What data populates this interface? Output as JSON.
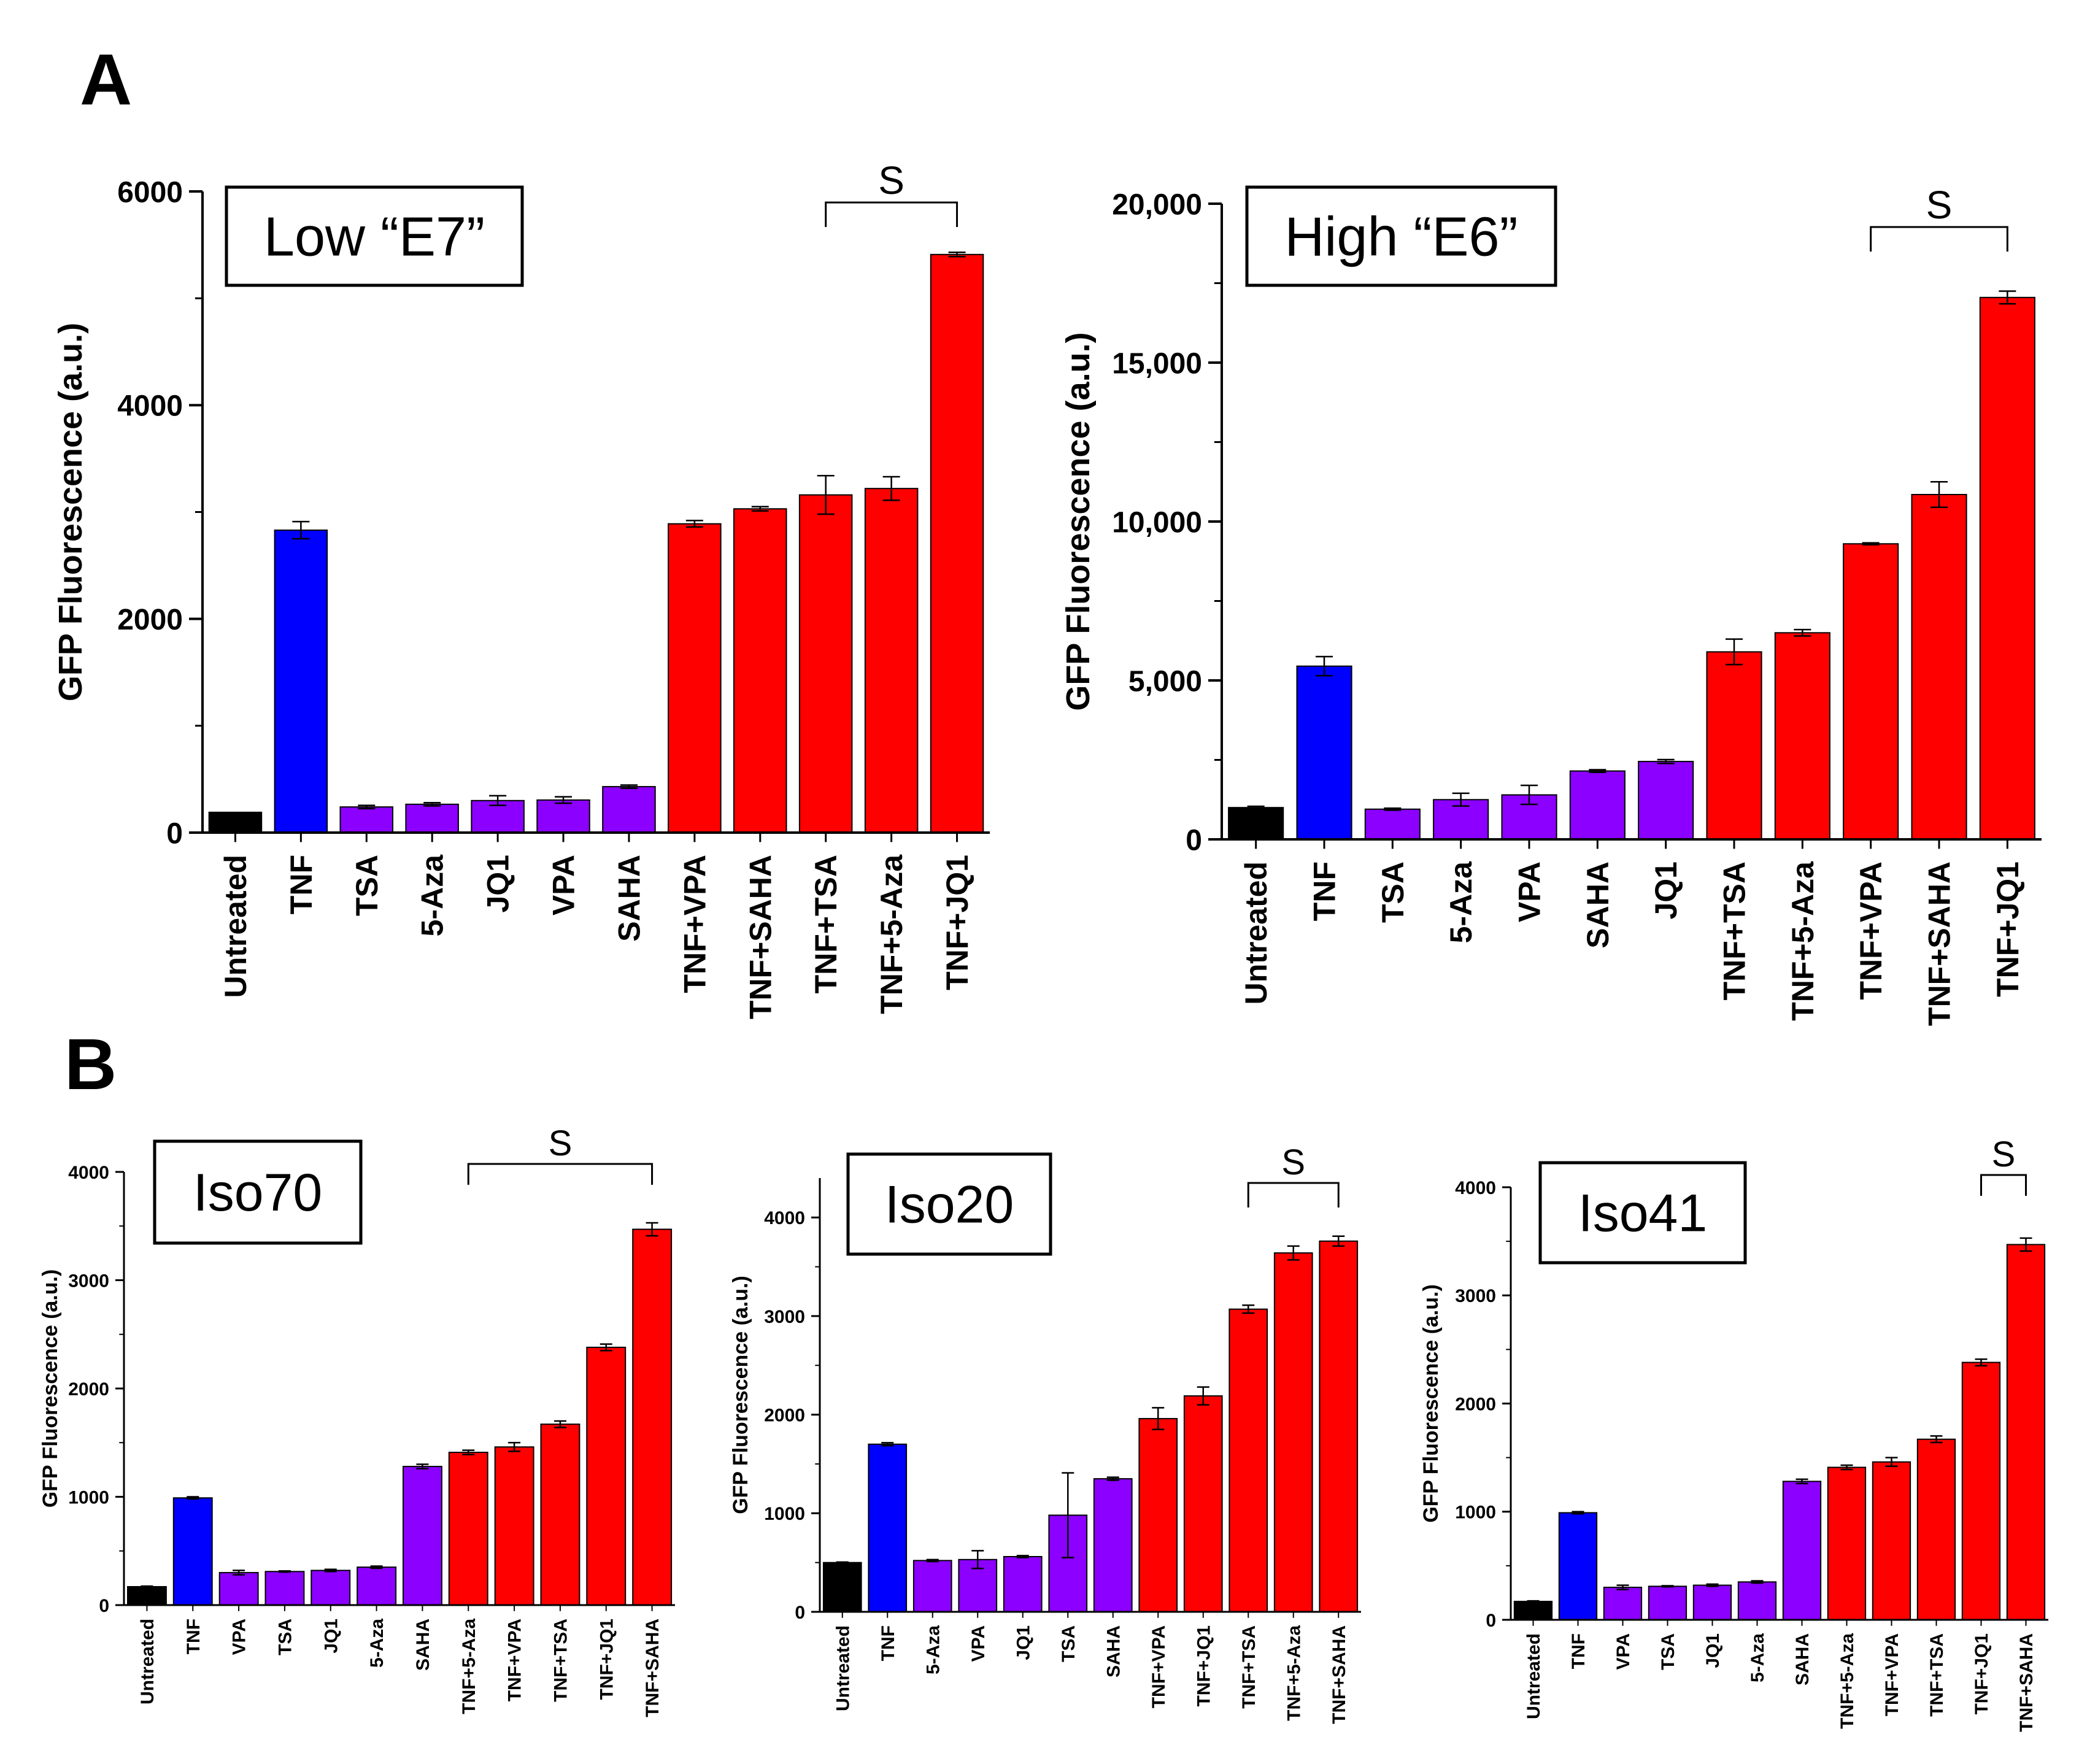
{
  "figure": {
    "panel_labels": [
      "A",
      "B"
    ],
    "colors": {
      "untreated": "#000000",
      "tnf": "#0000ff",
      "single_drug": "#8b00ff",
      "combination": "#ff0000",
      "axis": "#000000"
    }
  },
  "chart_data": [
    {
      "id": "low-e7",
      "type": "bar",
      "panel": "A",
      "title": "Low “E7”",
      "ylabel": "GFP Fluorescence (a.u.)",
      "xlabel": "",
      "ylim": [
        0,
        6000
      ],
      "yticks": [
        0,
        2000,
        4000,
        6000
      ],
      "ytick_labels": [
        "0",
        "2000",
        "4000",
        "6000"
      ],
      "categories": [
        "Untreated",
        "TNF",
        "TSA",
        "5-Aza",
        "JQ1",
        "VPA",
        "SAHA",
        "TNF+VPA",
        "TNF+SAHA",
        "TNF+TSA",
        "TNF+5-Aza",
        "TNF+JQ1"
      ],
      "values": [
        190,
        2830,
        240,
        265,
        300,
        305,
        430,
        2890,
        3030,
        3160,
        3220,
        5410
      ],
      "errors": [
        0,
        80,
        15,
        15,
        45,
        30,
        15,
        30,
        20,
        180,
        110,
        20
      ],
      "groups": [
        "untreated",
        "tnf",
        "single_drug",
        "single_drug",
        "single_drug",
        "single_drug",
        "single_drug",
        "combination",
        "combination",
        "combination",
        "combination",
        "combination"
      ],
      "significance": {
        "label": "S",
        "from": 9,
        "to": 11
      }
    },
    {
      "id": "high-e6",
      "type": "bar",
      "panel": "A",
      "title": "High “E6”",
      "ylabel": "GFP Fluorescence (a.u.)",
      "xlabel": "",
      "ylim": [
        0,
        20000
      ],
      "yticks": [
        0,
        5000,
        10000,
        15000,
        20000
      ],
      "ytick_labels": [
        "0",
        "5,000",
        "10,000",
        "15,000",
        "20,000"
      ],
      "categories": [
        "Untreated",
        "TNF",
        "TSA",
        "5-Aza",
        "VPA",
        "SAHA",
        "JQ1",
        "TNF+TSA",
        "TNF+5-Aza",
        "TNF+VPA",
        "TNF+SAHA",
        "TNF+JQ1"
      ],
      "values": [
        1000,
        5450,
        950,
        1250,
        1400,
        2150,
        2450,
        5900,
        6500,
        9300,
        10850,
        17050
      ],
      "errors": [
        40,
        300,
        30,
        200,
        300,
        40,
        60,
        400,
        100,
        30,
        400,
        200
      ],
      "groups": [
        "untreated",
        "tnf",
        "single_drug",
        "single_drug",
        "single_drug",
        "single_drug",
        "single_drug",
        "combination",
        "combination",
        "combination",
        "combination",
        "combination"
      ],
      "significance": {
        "label": "S",
        "from": 9,
        "to": 11
      }
    },
    {
      "id": "iso70",
      "type": "bar",
      "panel": "B",
      "title": "Iso70",
      "ylabel": "GFP Fluorescence (a.u.)",
      "xlabel": "",
      "ylim": [
        0,
        4000
      ],
      "yticks": [
        0,
        1000,
        2000,
        3000,
        4000
      ],
      "ytick_labels": [
        "0",
        "1000",
        "2000",
        "3000",
        "4000"
      ],
      "categories": [
        "Untreated",
        "TNF",
        "VPA",
        "TSA",
        "JQ1",
        "5-Aza",
        "SAHA",
        "TNF+5-Aza",
        "TNF+VPA",
        "TNF+TSA",
        "TNF+JQ1",
        "TNF+SAHA"
      ],
      "values": [
        170,
        990,
        300,
        310,
        320,
        350,
        1280,
        1410,
        1460,
        1670,
        2380,
        3470
      ],
      "errors": [
        5,
        10,
        20,
        5,
        10,
        10,
        20,
        20,
        40,
        30,
        30,
        60
      ],
      "groups": [
        "untreated",
        "tnf",
        "single_drug",
        "single_drug",
        "single_drug",
        "single_drug",
        "single_drug",
        "combination",
        "combination",
        "combination",
        "combination",
        "combination"
      ],
      "significance": {
        "label": "S",
        "from": 7,
        "to": 11
      }
    },
    {
      "id": "iso20",
      "type": "bar",
      "panel": "B",
      "title": "Iso20",
      "ylabel": "GFP Fluorescence (a.u.)",
      "xlabel": "",
      "ylim": [
        0,
        4400
      ],
      "yticks": [
        0,
        1000,
        2000,
        3000,
        4000
      ],
      "ytick_labels": [
        "0",
        "1000",
        "2000",
        "3000",
        "4000"
      ],
      "categories": [
        "Untreated",
        "TNF",
        "5-Aza",
        "VPA",
        "JQ1",
        "TSA",
        "SAHA",
        "TNF+VPA",
        "TNF+JQ1",
        "TNF+TSA",
        "TNF+5-Aza",
        "TNF+SAHA"
      ],
      "values": [
        500,
        1700,
        520,
        530,
        560,
        980,
        1350,
        1960,
        2190,
        3070,
        3640,
        3760
      ],
      "errors": [
        5,
        15,
        10,
        90,
        10,
        430,
        15,
        110,
        90,
        40,
        70,
        50
      ],
      "groups": [
        "untreated",
        "tnf",
        "single_drug",
        "single_drug",
        "single_drug",
        "single_drug",
        "single_drug",
        "combination",
        "combination",
        "combination",
        "combination",
        "combination"
      ],
      "significance": {
        "label": "S",
        "from": 9,
        "to": 11
      }
    },
    {
      "id": "iso41",
      "type": "bar",
      "panel": "B",
      "title": "Iso41",
      "ylabel": "GFP Fluorescence (a.u.)",
      "xlabel": "",
      "ylim": [
        0,
        4000
      ],
      "yticks": [
        0,
        1000,
        2000,
        3000,
        4000
      ],
      "ytick_labels": [
        "0",
        "1000",
        "2000",
        "3000",
        "4000"
      ],
      "categories": [
        "Untreated",
        "TNF",
        "VPA",
        "TSA",
        "JQ1",
        "5-Aza",
        "SAHA",
        "TNF+5-Aza",
        "TNF+VPA",
        "TNF+TSA",
        "TNF+JQ1",
        "TNF+SAHA"
      ],
      "values": [
        170,
        990,
        300,
        310,
        320,
        350,
        1280,
        1410,
        1460,
        1670,
        2380,
        3470
      ],
      "errors": [
        5,
        10,
        20,
        5,
        10,
        10,
        20,
        20,
        40,
        30,
        30,
        60
      ],
      "groups": [
        "untreated",
        "tnf",
        "single_drug",
        "single_drug",
        "single_drug",
        "single_drug",
        "single_drug",
        "combination",
        "combination",
        "combination",
        "combination",
        "combination"
      ],
      "significance": {
        "label": "S",
        "from": 10,
        "to": 11
      }
    }
  ]
}
